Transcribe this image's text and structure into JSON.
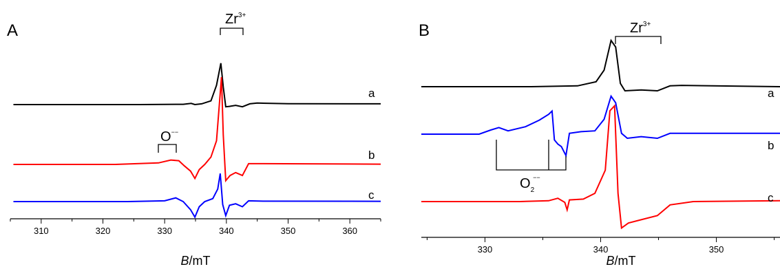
{
  "chart_data": [
    {
      "type": "line",
      "panel_label": "A",
      "xlabel_italic": "B",
      "xlabel_rest": "/mT",
      "xlim": [
        305,
        365
      ],
      "x_ticks": [
        310,
        320,
        330,
        340,
        350,
        360
      ],
      "y_axis_shown": false,
      "annotations": [
        {
          "base": "Zr",
          "sup": "3+",
          "bracket_x": [
            339,
            342.6
          ]
        },
        {
          "base": "O",
          "sup": "−−",
          "bracket_x": [
            332.3,
            335.2
          ]
        }
      ],
      "series": [
        {
          "name": "a",
          "color": "#000000",
          "points": [
            [
              305.5,
              0.0
            ],
            [
              326,
              0.0
            ],
            [
              333,
              0.02
            ],
            [
              334.3,
              0.08
            ],
            [
              334.9,
              0.0
            ],
            [
              336,
              0.05
            ],
            [
              337.5,
              0.25
            ],
            [
              338.4,
              1.3
            ],
            [
              339.1,
              2.8
            ],
            [
              339.5,
              1.2
            ],
            [
              339.9,
              -0.15
            ],
            [
              340.5,
              -0.12
            ],
            [
              341.5,
              -0.05
            ],
            [
              342.6,
              -0.15
            ],
            [
              343.8,
              0.05
            ],
            [
              345,
              0.1
            ],
            [
              350,
              0.06
            ],
            [
              365,
              0.05
            ]
          ]
        },
        {
          "name": "b",
          "color": "#ff0000",
          "points": [
            [
              305.5,
              0.0
            ],
            [
              322,
              0.0
            ],
            [
              329,
              0.1
            ],
            [
              331,
              0.3
            ],
            [
              332.3,
              0.25
            ],
            [
              333.2,
              -0.1
            ],
            [
              334.2,
              -0.45
            ],
            [
              334.9,
              -0.95
            ],
            [
              335.6,
              -0.35
            ],
            [
              336.5,
              0.0
            ],
            [
              337.5,
              0.5
            ],
            [
              338.4,
              1.6
            ],
            [
              339.2,
              5.9
            ],
            [
              339.5,
              2.0
            ],
            [
              339.9,
              -1.1
            ],
            [
              340.6,
              -0.75
            ],
            [
              341.5,
              -0.55
            ],
            [
              342.6,
              -0.75
            ],
            [
              343.6,
              0.05
            ],
            [
              346,
              0.05
            ],
            [
              365,
              0.02
            ]
          ]
        },
        {
          "name": "c",
          "color": "#0000ff",
          "points": [
            [
              305.5,
              0.0
            ],
            [
              324,
              0.0
            ],
            [
              330,
              0.05
            ],
            [
              331.8,
              0.25
            ],
            [
              333,
              0.0
            ],
            [
              334.2,
              -0.55
            ],
            [
              334.9,
              -1.05
            ],
            [
              335.6,
              -0.35
            ],
            [
              336.5,
              0.0
            ],
            [
              337.8,
              0.2
            ],
            [
              338.6,
              0.85
            ],
            [
              339.0,
              1.9
            ],
            [
              339.4,
              -0.2
            ],
            [
              339.9,
              -0.95
            ],
            [
              340.5,
              -0.25
            ],
            [
              341.5,
              -0.15
            ],
            [
              342.6,
              -0.35
            ],
            [
              343.6,
              0.05
            ],
            [
              346,
              0.03
            ],
            [
              365,
              0.02
            ]
          ]
        }
      ]
    },
    {
      "type": "line",
      "panel_label": "B",
      "xlabel_italic": "B",
      "xlabel_rest": "/mT",
      "xlim": [
        324.5,
        355.5
      ],
      "x_ticks": [
        330,
        340,
        350
      ],
      "y_axis_shown": false,
      "annotations": [
        {
          "base": "Zr",
          "sup": "3+",
          "bracket_x": [
            341.0,
            344.9
          ]
        },
        {
          "base": "O",
          "sub": "2",
          "sup": "−−",
          "bracket_x": [
            331.3,
            335.9,
            337.1
          ]
        }
      ],
      "series": [
        {
          "name": "a",
          "color": "#000000",
          "points": [
            [
              324.5,
              0.0
            ],
            [
              334,
              0.0
            ],
            [
              338,
              0.05
            ],
            [
              339.6,
              0.3
            ],
            [
              340.3,
              1.0
            ],
            [
              340.9,
              2.8
            ],
            [
              341.3,
              2.4
            ],
            [
              341.7,
              0.2
            ],
            [
              342.1,
              -0.25
            ],
            [
              343.5,
              -0.2
            ],
            [
              344.9,
              -0.25
            ],
            [
              346,
              0.05
            ],
            [
              347,
              0.08
            ],
            [
              355.5,
              0.0
            ]
          ]
        },
        {
          "name": "b",
          "color": "#0000ff",
          "points": [
            [
              324.5,
              0.0
            ],
            [
              329.5,
              0.0
            ],
            [
              330.5,
              0.25
            ],
            [
              331.2,
              0.4
            ],
            [
              332,
              0.2
            ],
            [
              333.5,
              0.45
            ],
            [
              334.7,
              0.85
            ],
            [
              335.5,
              1.2
            ],
            [
              335.8,
              1.4
            ],
            [
              336.0,
              -0.35
            ],
            [
              336.3,
              -0.6
            ],
            [
              336.6,
              -0.75
            ],
            [
              337.0,
              -1.3
            ],
            [
              337.3,
              0.05
            ],
            [
              338.3,
              0.15
            ],
            [
              339.5,
              0.2
            ],
            [
              340.3,
              0.9
            ],
            [
              340.9,
              2.3
            ],
            [
              341.3,
              1.9
            ],
            [
              341.8,
              0.05
            ],
            [
              342.3,
              -0.25
            ],
            [
              343.5,
              -0.15
            ],
            [
              344.9,
              -0.25
            ],
            [
              346,
              0.05
            ],
            [
              355.5,
              0.05
            ]
          ]
        },
        {
          "name": "c",
          "color": "#ff0000",
          "points": [
            [
              324.5,
              0.0
            ],
            [
              333,
              0.0
            ],
            [
              335.5,
              0.05
            ],
            [
              336.3,
              0.2
            ],
            [
              336.9,
              -0.05
            ],
            [
              337.1,
              -0.5
            ],
            [
              337.3,
              0.1
            ],
            [
              338.5,
              0.15
            ],
            [
              339.5,
              0.5
            ],
            [
              340.4,
              1.9
            ],
            [
              340.8,
              5.5
            ],
            [
              341.2,
              5.8
            ],
            [
              341.5,
              0.5
            ],
            [
              341.8,
              -1.6
            ],
            [
              342.4,
              -1.3
            ],
            [
              343.5,
              -1.1
            ],
            [
              344.9,
              -0.85
            ],
            [
              346,
              -0.2
            ],
            [
              348,
              0.0
            ],
            [
              355.5,
              0.05
            ]
          ]
        }
      ]
    }
  ]
}
